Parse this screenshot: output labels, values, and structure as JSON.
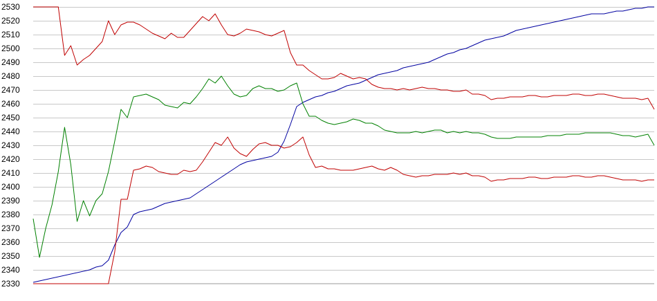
{
  "chart_data": {
    "type": "line",
    "title": "",
    "xlabel": "",
    "ylabel": "",
    "ylim": [
      2330,
      2530
    ],
    "yticks": [
      2330,
      2340,
      2350,
      2360,
      2370,
      2380,
      2390,
      2400,
      2410,
      2420,
      2430,
      2440,
      2450,
      2460,
      2470,
      2480,
      2490,
      2500,
      2510,
      2520,
      2530
    ],
    "xlim": [
      0,
      99
    ],
    "grid": "horizontal",
    "legend": "none",
    "series": [
      {
        "color": "#0000a0",
        "x": [
          0,
          9,
          10,
          11,
          12,
          13,
          14,
          15,
          16,
          17,
          18,
          19,
          20,
          21,
          22,
          23,
          24,
          25,
          26,
          27,
          28,
          29,
          30,
          31,
          32,
          33,
          34,
          35,
          36,
          37,
          38,
          39,
          40,
          41,
          42,
          43,
          44,
          45,
          46,
          47,
          48,
          49,
          50,
          51,
          52,
          53,
          54,
          55,
          56,
          57,
          58,
          59,
          60,
          61,
          62,
          63,
          64,
          65,
          66,
          67,
          68,
          69,
          70,
          71,
          72,
          73,
          74,
          75,
          76,
          77,
          78,
          79,
          80,
          81,
          82,
          83,
          84,
          85,
          86,
          87,
          88,
          89,
          90,
          91,
          92,
          93,
          94,
          95,
          96,
          97,
          98,
          99
        ],
        "y": [
          2331,
          2340,
          2342,
          2343,
          2347,
          2358,
          2367,
          2371,
          2380,
          2382,
          2383,
          2384,
          2386,
          2388,
          2389,
          2390,
          2391,
          2392,
          2395,
          2398,
          2401,
          2404,
          2407,
          2410,
          2413,
          2416,
          2418,
          2419,
          2420,
          2421,
          2422,
          2425,
          2433,
          2445,
          2458,
          2461,
          2463,
          2465,
          2466,
          2468,
          2469,
          2471,
          2473,
          2474,
          2475,
          2477,
          2479,
          2481,
          2482,
          2483,
          2484,
          2486,
          2487,
          2488,
          2489,
          2490,
          2492,
          2494,
          2496,
          2497,
          2499,
          2500,
          2502,
          2504,
          2506,
          2507,
          2508,
          2509,
          2511,
          2513,
          2514,
          2515,
          2516,
          2517,
          2518,
          2519,
          2520,
          2521,
          2522,
          2523,
          2524,
          2525,
          2525,
          2525,
          2526,
          2527,
          2527,
          2528,
          2529,
          2529,
          2530,
          2530
        ]
      },
      {
        "color": "#c00000",
        "x": [
          0,
          1,
          2,
          3,
          4,
          5,
          6,
          7,
          8,
          9,
          10,
          11,
          12,
          13,
          14,
          15,
          16,
          17,
          18,
          19,
          20,
          21,
          22,
          23,
          24,
          25,
          26,
          27,
          28,
          29,
          30,
          31,
          32,
          33,
          34,
          35,
          36,
          37,
          38,
          39,
          40,
          41,
          42,
          43,
          44,
          45,
          46,
          47,
          48,
          49,
          50,
          51,
          52,
          53,
          54,
          55,
          56,
          57,
          58,
          59,
          60,
          61,
          62,
          63,
          64,
          65,
          66,
          67,
          68,
          69,
          70,
          71,
          72,
          73,
          74,
          75,
          76,
          77,
          78,
          79,
          80,
          81,
          82,
          83,
          84,
          85,
          86,
          87,
          88,
          89,
          90,
          91,
          92,
          93,
          94,
          95,
          96,
          97,
          98,
          99
        ],
        "y": [
          2530,
          2530,
          2530,
          2530,
          2530,
          2495,
          2502,
          2488,
          2492,
          2495,
          2500,
          2505,
          2520,
          2510,
          2517,
          2519,
          2519,
          2517,
          2514,
          2511,
          2509,
          2507,
          2511,
          2508,
          2508,
          2513,
          2518,
          2523,
          2520,
          2525,
          2517,
          2510,
          2509,
          2511,
          2514,
          2513,
          2512,
          2510,
          2509,
          2511,
          2513,
          2497,
          2488,
          2488,
          2484,
          2481,
          2478,
          2478,
          2479,
          2482,
          2480,
          2478,
          2479,
          2478,
          2474,
          2472,
          2471,
          2471,
          2470,
          2471,
          2470,
          2471,
          2472,
          2471,
          2471,
          2470,
          2470,
          2469,
          2469,
          2470,
          2467,
          2467,
          2466,
          2463,
          2464,
          2464,
          2465,
          2465,
          2465,
          2466,
          2466,
          2465,
          2465,
          2466,
          2466,
          2466,
          2467,
          2467,
          2466,
          2466,
          2467,
          2467,
          2466,
          2465,
          2464,
          2464,
          2464,
          2463,
          2464,
          2456
        ]
      },
      {
        "color": "#008000",
        "x": [
          0,
          1,
          2,
          3,
          4,
          5,
          6,
          7,
          8,
          9,
          10,
          11,
          12,
          13,
          14,
          15,
          16,
          17,
          18,
          19,
          20,
          21,
          22,
          23,
          24,
          25,
          26,
          27,
          28,
          29,
          30,
          31,
          32,
          33,
          34,
          35,
          36,
          37,
          38,
          39,
          40,
          41,
          42,
          43,
          44,
          45,
          46,
          47,
          48,
          49,
          50,
          51,
          52,
          53,
          54,
          55,
          56,
          57,
          58,
          59,
          60,
          61,
          62,
          63,
          64,
          65,
          66,
          67,
          68,
          69,
          70,
          71,
          72,
          73,
          74,
          75,
          76,
          77,
          78,
          79,
          80,
          81,
          82,
          83,
          84,
          85,
          86,
          87,
          88,
          89,
          90,
          91,
          92,
          93,
          94,
          95,
          96,
          97,
          98,
          99
        ],
        "y": [
          2377,
          2349,
          2370,
          2387,
          2411,
          2443,
          2416,
          2375,
          2390,
          2379,
          2390,
          2395,
          2411,
          2433,
          2456,
          2450,
          2465,
          2466,
          2467,
          2465,
          2463,
          2459,
          2458,
          2457,
          2461,
          2460,
          2465,
          2471,
          2478,
          2475,
          2480,
          2473,
          2467,
          2465,
          2466,
          2471,
          2473,
          2471,
          2471,
          2469,
          2470,
          2473,
          2475,
          2460,
          2451,
          2451,
          2448,
          2446,
          2445,
          2446,
          2447,
          2449,
          2448,
          2446,
          2446,
          2444,
          2441,
          2440,
          2439,
          2439,
          2439,
          2440,
          2439,
          2440,
          2441,
          2441,
          2439,
          2440,
          2439,
          2440,
          2439,
          2439,
          2438,
          2436,
          2435,
          2435,
          2435,
          2436,
          2436,
          2436,
          2436,
          2436,
          2437,
          2437,
          2437,
          2438,
          2438,
          2438,
          2439,
          2439,
          2439,
          2439,
          2439,
          2438,
          2437,
          2437,
          2436,
          2437,
          2438,
          2430
        ]
      },
      {
        "color": "#c00000",
        "x": [
          0,
          1,
          2,
          3,
          4,
          5,
          6,
          7,
          8,
          9,
          10,
          11,
          12,
          13,
          14,
          15,
          16,
          17,
          18,
          19,
          20,
          21,
          22,
          23,
          24,
          25,
          26,
          27,
          28,
          29,
          30,
          31,
          32,
          33,
          34,
          35,
          36,
          37,
          38,
          39,
          40,
          41,
          42,
          43,
          44,
          45,
          46,
          47,
          48,
          49,
          50,
          51,
          52,
          53,
          54,
          55,
          56,
          57,
          58,
          59,
          60,
          61,
          62,
          63,
          64,
          65,
          66,
          67,
          68,
          69,
          70,
          71,
          72,
          73,
          74,
          75,
          76,
          77,
          78,
          79,
          80,
          81,
          82,
          83,
          84,
          85,
          86,
          87,
          88,
          89,
          90,
          91,
          92,
          93,
          94,
          95,
          96,
          97,
          98,
          99
        ],
        "y": [
          2330,
          2330,
          2330,
          2330,
          2330,
          2330,
          2330,
          2330,
          2330,
          2330,
          2330,
          2330,
          2330,
          2353,
          2391,
          2391,
          2412,
          2413,
          2415,
          2414,
          2411,
          2410,
          2409,
          2409,
          2412,
          2411,
          2412,
          2418,
          2425,
          2432,
          2430,
          2436,
          2428,
          2424,
          2422,
          2427,
          2431,
          2432,
          2430,
          2430,
          2428,
          2429,
          2432,
          2436,
          2423,
          2414,
          2415,
          2413,
          2413,
          2412,
          2412,
          2412,
          2413,
          2414,
          2415,
          2413,
          2412,
          2414,
          2412,
          2409,
          2408,
          2407,
          2408,
          2408,
          2409,
          2409,
          2409,
          2410,
          2409,
          2410,
          2408,
          2408,
          2407,
          2404,
          2405,
          2405,
          2406,
          2406,
          2406,
          2407,
          2407,
          2406,
          2406,
          2407,
          2407,
          2407,
          2408,
          2408,
          2407,
          2407,
          2408,
          2408,
          2407,
          2406,
          2405,
          2405,
          2405,
          2404,
          2405,
          2405
        ]
      }
    ]
  }
}
